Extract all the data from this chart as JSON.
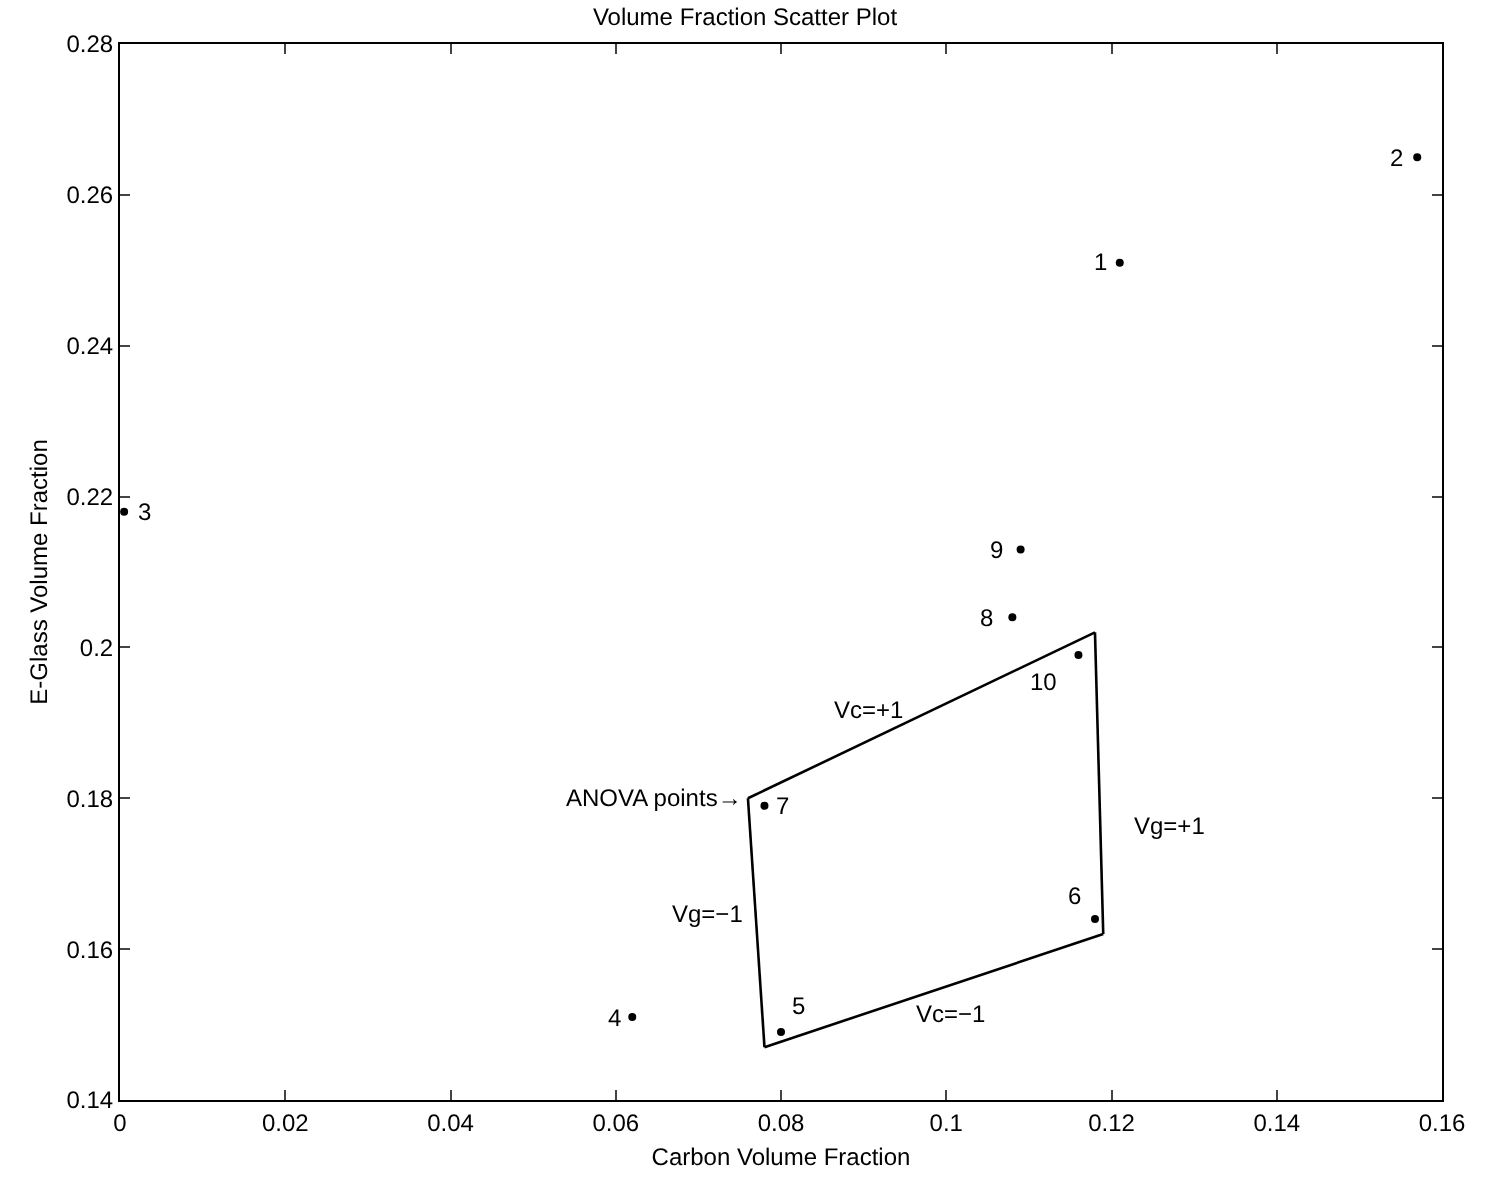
{
  "chart_data": {
    "type": "scatter",
    "title": "Volume Fraction Scatter Plot",
    "xlabel": "Carbon Volume Fraction",
    "ylabel": "E-Glass Volume Fraction",
    "xlim": [
      0,
      0.16
    ],
    "xticks": [
      0,
      0.02,
      0.04,
      0.06,
      0.08,
      0.1,
      0.12,
      0.14,
      0.16
    ],
    "ylim": [
      0.14,
      0.28
    ],
    "yticks": [
      0.14,
      0.16,
      0.18,
      0.2,
      0.22,
      0.24,
      0.26,
      0.28
    ],
    "grid": false,
    "series": [
      {
        "color": "#000000",
        "marker": "circle",
        "x": [
          0.121,
          0.157,
          0.0005,
          0.062,
          0.08,
          0.118,
          0.078,
          0.108,
          0.109,
          0.116
        ],
        "values": [
          0.251,
          0.265,
          0.218,
          0.151,
          0.149,
          0.164,
          0.179,
          0.204,
          0.213,
          0.199
        ]
      },
      {
        "type": "line",
        "color": "#000000",
        "marker": "none",
        "line_style": "solid",
        "x": [
          0.076,
          0.118
        ],
        "values": [
          0.18,
          0.202
        ]
      },
      {
        "type": "line",
        "color": "#000000",
        "marker": "none",
        "line_style": "solid",
        "x": [
          0.118,
          0.119
        ],
        "values": [
          0.202,
          0.162
        ]
      },
      {
        "type": "line",
        "color": "#000000",
        "marker": "none",
        "line_style": "solid",
        "x": [
          0.078,
          0.119
        ],
        "values": [
          0.147,
          0.162
        ]
      },
      {
        "type": "line",
        "color": "#000000",
        "marker": "none",
        "line_style": "solid",
        "x": [
          0.076,
          0.078
        ],
        "values": [
          0.18,
          0.147
        ]
      }
    ],
    "annotations": [
      {
        "text": "1",
        "x": 0.121,
        "y": 0.251
      },
      {
        "text": "2",
        "x": 0.157,
        "y": 0.265
      },
      {
        "text": "3",
        "x": 0.0005,
        "y": 0.218
      },
      {
        "text": "4",
        "x": 0.062,
        "y": 0.151
      },
      {
        "text": "5",
        "x": 0.08,
        "y": 0.149
      },
      {
        "text": "6",
        "x": 0.118,
        "y": 0.164
      },
      {
        "text": "7",
        "x": 0.078,
        "y": 0.179
      },
      {
        "text": "8",
        "x": 0.108,
        "y": 0.204
      },
      {
        "text": "9",
        "x": 0.109,
        "y": 0.213
      },
      {
        "text": "10",
        "x": 0.116,
        "y": 0.199
      },
      {
        "text": "Vc=+1",
        "x": 0.0906,
        "y": 0.1876
      },
      {
        "text": "Vc=−1",
        "x": 0.1005,
        "y": 0.1552
      },
      "Vg=+1",
      {
        "text": "Vg=−1",
        "x": 0.077,
        "y": 0.1646
      },
      {
        "text": "ANOVA points→",
        "x": 0.076,
        "y": 0.18
      }
    ]
  }
}
